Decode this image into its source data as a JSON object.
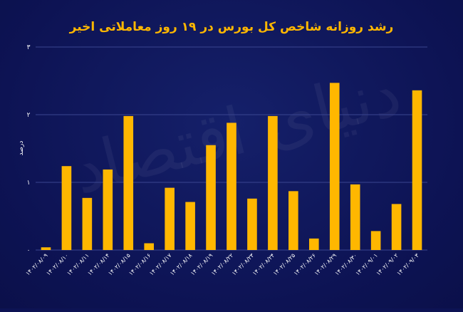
{
  "colors": {
    "background": "#0d1354",
    "bar": "#ffb700",
    "title": "#ffb700",
    "text": "#ffffff",
    "grid": "#3a4590"
  },
  "watermark": "دنیای اقتصاد",
  "chart_data": {
    "type": "bar",
    "title": "رشد روزانه شاخص کل بورس در ۱۹ روز معاملاتی اخیر",
    "xlabel": "",
    "ylabel": "درصد",
    "ylim": [
      0,
      3
    ],
    "yticks": [
      0,
      1,
      2,
      3
    ],
    "ytick_labels": [
      "۰",
      "۱",
      "۲",
      "۳"
    ],
    "grid": true,
    "categories": [
      "۱۴۰۲/۰۸/۰۹",
      "۱۴۰۲/۰۸/۱۰",
      "۱۴۰۲/۰۸/۱۱",
      "۱۴۰۲/۰۸/۱۴",
      "۱۴۰۲/۰۸/۱۵",
      "۱۴۰۲/۰۸/۱۶",
      "۱۴۰۲/۰۸/۱۷",
      "۱۴۰۲/۰۸/۱۸",
      "۱۴۰۲/۰۸/۱۹",
      "۱۴۰۲/۰۸/۲۲",
      "۱۴۰۲/۰۸/۲۳",
      "۱۴۰۲/۰۸/۲۴",
      "۱۴۰۲/۰۸/۲۵",
      "۱۴۰۲/۰۸/۲۶",
      "۱۴۰۲/۰۸/۲۹",
      "۱۴۰۲/۰۸/۳۰",
      "۱۴۰۲/۰۹/۰۱",
      "۱۴۰۲/۰۹/۰۲",
      "۱۴۰۲/۰۹/۰۳"
    ],
    "values": [
      0.04,
      1.24,
      0.77,
      1.19,
      1.98,
      0.1,
      0.92,
      0.71,
      1.55,
      1.88,
      0.76,
      1.98,
      0.87,
      0.17,
      2.47,
      0.97,
      0.28,
      0.68,
      2.36
    ]
  }
}
